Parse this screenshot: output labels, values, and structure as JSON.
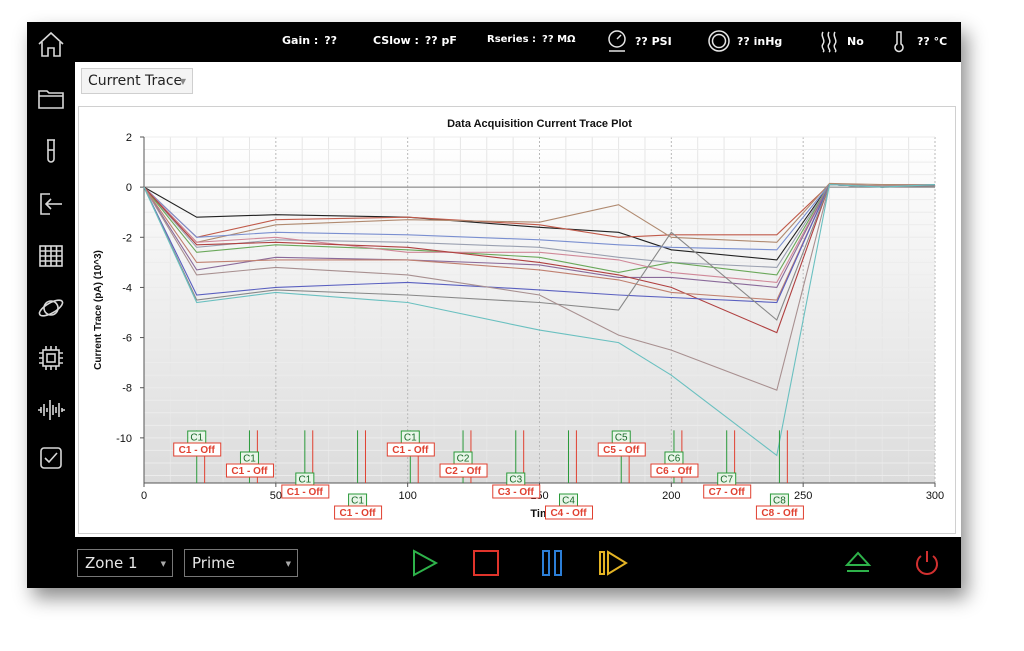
{
  "status_bar": {
    "gain_label": "Gain :",
    "gain_value": "??",
    "cslow_label": "CSlow :",
    "cslow_value": "?? pF",
    "rseries_label": "Rseries :",
    "rseries_value": "?? MΩ",
    "pressure_value": "?? PSI",
    "vacuum_value": "?? inHg",
    "heater_value": "No",
    "temperature_value": "?? °C"
  },
  "sidebar": {
    "icons": [
      "home-icon",
      "folder-icon",
      "test-tube-icon",
      "login-icon",
      "grid-icon",
      "planet-icon",
      "chip-icon",
      "waveform-icon",
      "checkbox-icon"
    ]
  },
  "view_selector": {
    "value": "Current Trace"
  },
  "bottom_bar": {
    "zone_value": "Zone 1",
    "mode_value": "Prime",
    "controls": [
      "play-icon",
      "stop-icon",
      "pause-icon",
      "step-forward-icon",
      "eject-icon",
      "power-icon"
    ],
    "colors": {
      "play": "#2eb24a",
      "stop": "#e0342b",
      "pause": "#2c7fd8",
      "step": "#e3b324",
      "eject": "#2eb24a",
      "power": "#d23030"
    }
  },
  "chart_data": {
    "type": "line",
    "title": "Data Acquisition Current Trace Plot",
    "xlabel": "Time (sec)",
    "ylabel": "Current Trace (pA) (10^3)",
    "xlim": [
      0,
      300
    ],
    "ylim": [
      -11.8,
      2
    ],
    "xticks": [
      0,
      50,
      100,
      150,
      200,
      250,
      300
    ],
    "yticks": [
      2,
      0,
      -2,
      -4,
      -6,
      -8,
      -10
    ],
    "x": [
      0,
      20,
      50,
      100,
      150,
      180,
      200,
      240,
      260,
      280,
      300
    ],
    "series": [
      {
        "color": "#222222",
        "values": [
          0,
          -1.2,
          -1.1,
          -1.2,
          -1.6,
          -1.8,
          -2.5,
          -2.9,
          0.1,
          0.05,
          0.1
        ]
      },
      {
        "color": "#c05a4a",
        "values": [
          0,
          -2.0,
          -1.3,
          -1.2,
          -1.5,
          -2.0,
          -1.9,
          -1.9,
          0.1,
          0.0,
          0.05
        ]
      },
      {
        "color": "#b08a70",
        "values": [
          0,
          -2.2,
          -1.5,
          -1.3,
          -1.4,
          -0.7,
          -2.0,
          -2.2,
          0.15,
          0.1,
          0.1
        ]
      },
      {
        "color": "#7a8fd0",
        "values": [
          0,
          -2.0,
          -1.8,
          -1.9,
          -2.1,
          -2.3,
          -2.4,
          -2.5,
          0.1,
          0.0,
          0.1
        ]
      },
      {
        "color": "#9aa0b0",
        "values": [
          0,
          -2.4,
          -2.1,
          -2.2,
          -2.4,
          -2.8,
          -3.0,
          -3.2,
          0.1,
          0.05,
          0.05
        ]
      },
      {
        "color": "#6aa85a",
        "values": [
          0,
          -2.6,
          -2.3,
          -2.5,
          -2.8,
          -3.4,
          -3.0,
          -3.5,
          0.1,
          0.0,
          0.1
        ]
      },
      {
        "color": "#d08898",
        "values": [
          0,
          -2.2,
          -2.0,
          -2.6,
          -2.6,
          -2.9,
          -3.4,
          -3.8,
          0.1,
          0.05,
          0.1
        ]
      },
      {
        "color": "#8a6a9a",
        "values": [
          0,
          -3.3,
          -2.8,
          -2.9,
          -3.1,
          -3.6,
          -3.6,
          -4.0,
          0.1,
          0.0,
          0.05
        ]
      },
      {
        "color": "#b04040",
        "values": [
          0,
          -2.3,
          -2.2,
          -2.4,
          -3.0,
          -3.5,
          -4.0,
          -5.8,
          0.1,
          0.0,
          0.1
        ]
      },
      {
        "color": "#c08070",
        "values": [
          0,
          -3.0,
          -2.9,
          -2.9,
          -3.3,
          -3.7,
          -4.2,
          -4.5,
          0.1,
          0.05,
          0.1
        ]
      },
      {
        "color": "#5a60c0",
        "values": [
          0,
          -4.3,
          -4.0,
          -3.8,
          -4.1,
          -4.3,
          -4.4,
          -4.6,
          0.1,
          0.0,
          0.1
        ]
      },
      {
        "color": "#888888",
        "values": [
          0,
          -4.5,
          -4.1,
          -4.3,
          -4.6,
          -4.9,
          -1.8,
          -5.3,
          0.1,
          0.0,
          0.05
        ]
      },
      {
        "color": "#a89090",
        "values": [
          0,
          -3.5,
          -3.2,
          -3.5,
          -4.3,
          -5.9,
          -6.5,
          -8.1,
          0.1,
          0.05,
          0.1
        ]
      },
      {
        "color": "#6ac0c0",
        "values": [
          0,
          -4.6,
          -4.2,
          -4.6,
          -5.7,
          -6.2,
          -7.5,
          -10.7,
          0.1,
          0.0,
          0.1
        ]
      }
    ],
    "markers": [
      {
        "label": "C1",
        "x": 20,
        "row": 0
      },
      {
        "label": "C1",
        "x": 40,
        "row": 1
      },
      {
        "label": "C1",
        "x": 61,
        "row": 2
      },
      {
        "label": "C1",
        "x": 81,
        "row": 3
      },
      {
        "label": "C1",
        "x": 101,
        "row": 0
      },
      {
        "label": "C2",
        "x": 121,
        "row": 1
      },
      {
        "label": "C3",
        "x": 141,
        "row": 2
      },
      {
        "label": "C4",
        "x": 161,
        "row": 3
      },
      {
        "label": "C5",
        "x": 181,
        "row": 0
      },
      {
        "label": "C6",
        "x": 201,
        "row": 1
      },
      {
        "label": "C7",
        "x": 221,
        "row": 2
      },
      {
        "label": "C8",
        "x": 241,
        "row": 3
      }
    ],
    "off_labels": [
      "C1 - Off",
      "C1 - Off",
      "C1 - Off",
      "C1 - Off",
      "C1 - Off",
      "C2 - Off",
      "C3 - Off",
      "C4 - Off",
      "C5 - Off",
      "C6 - Off",
      "C7 - Off",
      "C8 - Off"
    ],
    "marker_colors": {
      "on": "#2a9a3a",
      "off": "#e04030"
    }
  }
}
